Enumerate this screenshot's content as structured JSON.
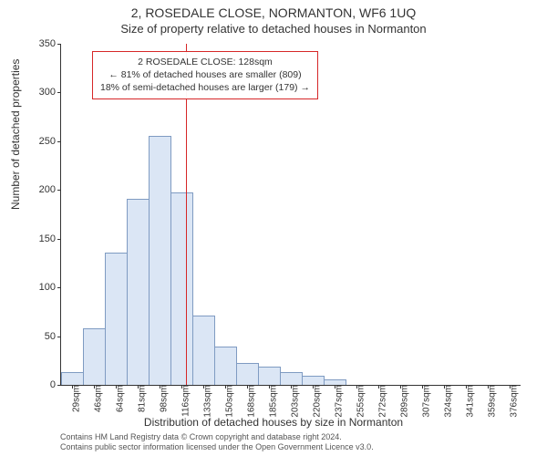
{
  "header": {
    "line1": "2, ROSEDALE CLOSE, NORMANTON, WF6 1UQ",
    "line2": "Size of property relative to detached houses in Normanton"
  },
  "chart": {
    "type": "histogram",
    "ylabel": "Number of detached properties",
    "xlabel": "Distribution of detached houses by size in Normanton",
    "ylim": [
      0,
      350
    ],
    "ytick_step": 50,
    "yticks": [
      0,
      50,
      100,
      150,
      200,
      250,
      300,
      350
    ],
    "xticks": [
      "29sqm",
      "46sqm",
      "64sqm",
      "81sqm",
      "98sqm",
      "116sqm",
      "133sqm",
      "150sqm",
      "168sqm",
      "185sqm",
      "203sqm",
      "220sqm",
      "237sqm",
      "255sqm",
      "272sqm",
      "289sqm",
      "307sqm",
      "324sqm",
      "341sqm",
      "359sqm",
      "376sqm"
    ],
    "bars": [
      12,
      57,
      135,
      190,
      255,
      197,
      70,
      38,
      22,
      18,
      12,
      8,
      5,
      0,
      0,
      0,
      0,
      0,
      0,
      0,
      0
    ],
    "bar_fill": "#dbe6f5",
    "bar_stroke": "#7f9bc2",
    "background_color": "#ffffff",
    "axis_color": "#333333",
    "tick_fontsize": 11,
    "label_fontsize": 12,
    "title_fontsize": 14,
    "marker": {
      "position_index": 5.7,
      "color": "#d62728",
      "callout_border": "#d62728",
      "line1": "2 ROSEDALE CLOSE: 128sqm",
      "line2": "← 81% of detached houses are smaller (809)",
      "line3": "18% of semi-detached houses are larger (179) →"
    }
  },
  "footer": {
    "line1": "Contains HM Land Registry data © Crown copyright and database right 2024.",
    "line2": "Contains public sector information licensed under the Open Government Licence v3.0."
  }
}
